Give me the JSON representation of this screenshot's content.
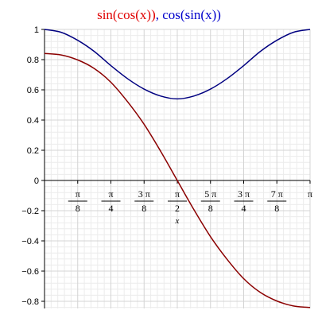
{
  "chart_data": {
    "type": "line",
    "title_parts": [
      {
        "text": "sin(cos(x))",
        "color": "#e00000"
      },
      {
        "text": ", ",
        "color": "#0000cc"
      },
      {
        "text": "cos(sin(x))",
        "color": "#0000cc"
      }
    ],
    "xlabel": "x",
    "xlim": [
      0,
      3.14159265
    ],
    "ylim": [
      -0.84,
      1.0
    ],
    "grid": true,
    "yticks": [
      {
        "value": 1,
        "label": "1"
      },
      {
        "value": 0.8,
        "label": "0.8"
      },
      {
        "value": 0.6,
        "label": "0.6"
      },
      {
        "value": 0.4,
        "label": "0.4"
      },
      {
        "value": 0.2,
        "label": "0.2"
      },
      {
        "value": 0,
        "label": "0"
      },
      {
        "value": -0.2,
        "label": "−0.2"
      },
      {
        "value": -0.4,
        "label": "−0.4"
      },
      {
        "value": -0.6,
        "label": "−0.6"
      },
      {
        "value": -0.8,
        "label": "−0.8"
      }
    ],
    "xticks": [
      {
        "value": 0.39269908,
        "num": "π",
        "den": "8"
      },
      {
        "value": 0.78539816,
        "num": "π",
        "den": "4"
      },
      {
        "value": 1.17809725,
        "num": "3 π",
        "den": "8"
      },
      {
        "value": 1.57079633,
        "num": "π",
        "den": "2"
      },
      {
        "value": 1.96349541,
        "num": "5 π",
        "den": "8"
      },
      {
        "value": 2.35619449,
        "num": "3 π",
        "den": "4"
      },
      {
        "value": 2.74889357,
        "num": "7 π",
        "den": "8"
      },
      {
        "value": 3.14159265,
        "num": "π",
        "den": ""
      }
    ],
    "series": [
      {
        "name": "sin(cos(x))",
        "color": "#8b0000",
        "x": [
          0,
          0.1963,
          0.3927,
          0.589,
          0.7854,
          0.9817,
          1.1781,
          1.3744,
          1.5708,
          1.7671,
          1.9635,
          2.1598,
          2.3562,
          2.5525,
          2.7489,
          2.9452,
          3.1416
        ],
        "y": [
          0.841,
          0.831,
          0.798,
          0.741,
          0.65,
          0.522,
          0.372,
          0.193,
          0.0,
          -0.193,
          -0.372,
          -0.522,
          -0.65,
          -0.741,
          -0.798,
          -0.831,
          -0.841
        ]
      },
      {
        "name": "cos(sin(x))",
        "color": "#000080",
        "x": [
          0,
          0.1963,
          0.3927,
          0.589,
          0.7854,
          0.9817,
          1.1781,
          1.3744,
          1.5708,
          1.7671,
          1.9635,
          2.1598,
          2.3562,
          2.5525,
          2.7489,
          2.9452,
          3.1416
        ],
        "y": [
          1.0,
          0.981,
          0.928,
          0.854,
          0.76,
          0.674,
          0.605,
          0.559,
          0.54,
          0.559,
          0.605,
          0.674,
          0.76,
          0.854,
          0.928,
          0.981,
          1.0
        ]
      }
    ]
  }
}
